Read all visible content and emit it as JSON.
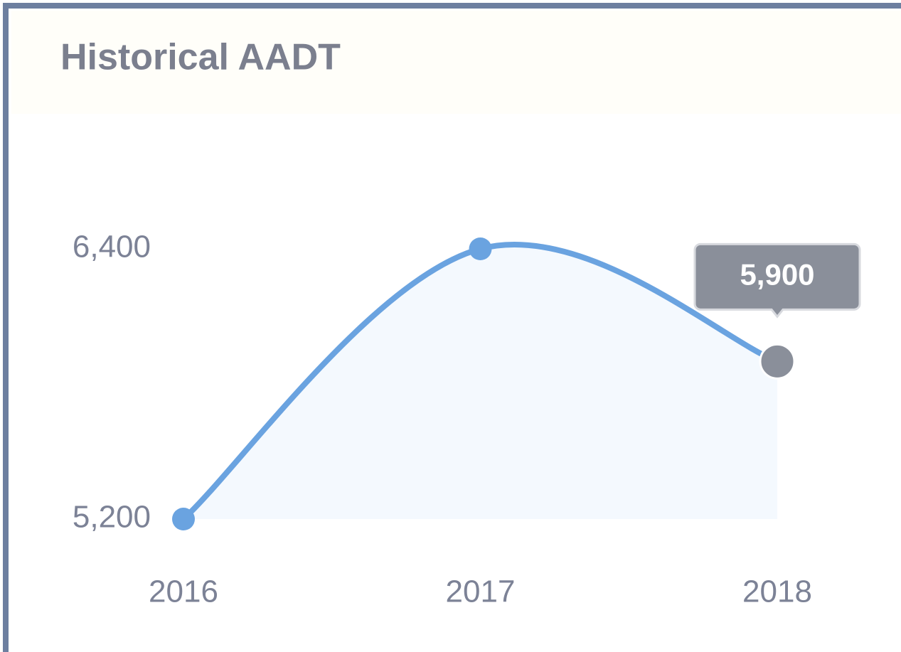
{
  "chart_data": {
    "type": "line",
    "title": "Historical AADT",
    "categories": [
      "2016",
      "2017",
      "2018"
    ],
    "series": [
      {
        "name": "AADT",
        "color": "#6aa3e0",
        "values": [
          5200,
          6400,
          5900
        ],
        "value_labels": [
          null,
          null,
          "5,900"
        ]
      }
    ],
    "ylim": [
      5200,
      6400
    ],
    "yticks": [
      {
        "value": 5200,
        "label": "5,200"
      },
      {
        "value": 6400,
        "label": "6,400"
      }
    ],
    "grid": false
  }
}
